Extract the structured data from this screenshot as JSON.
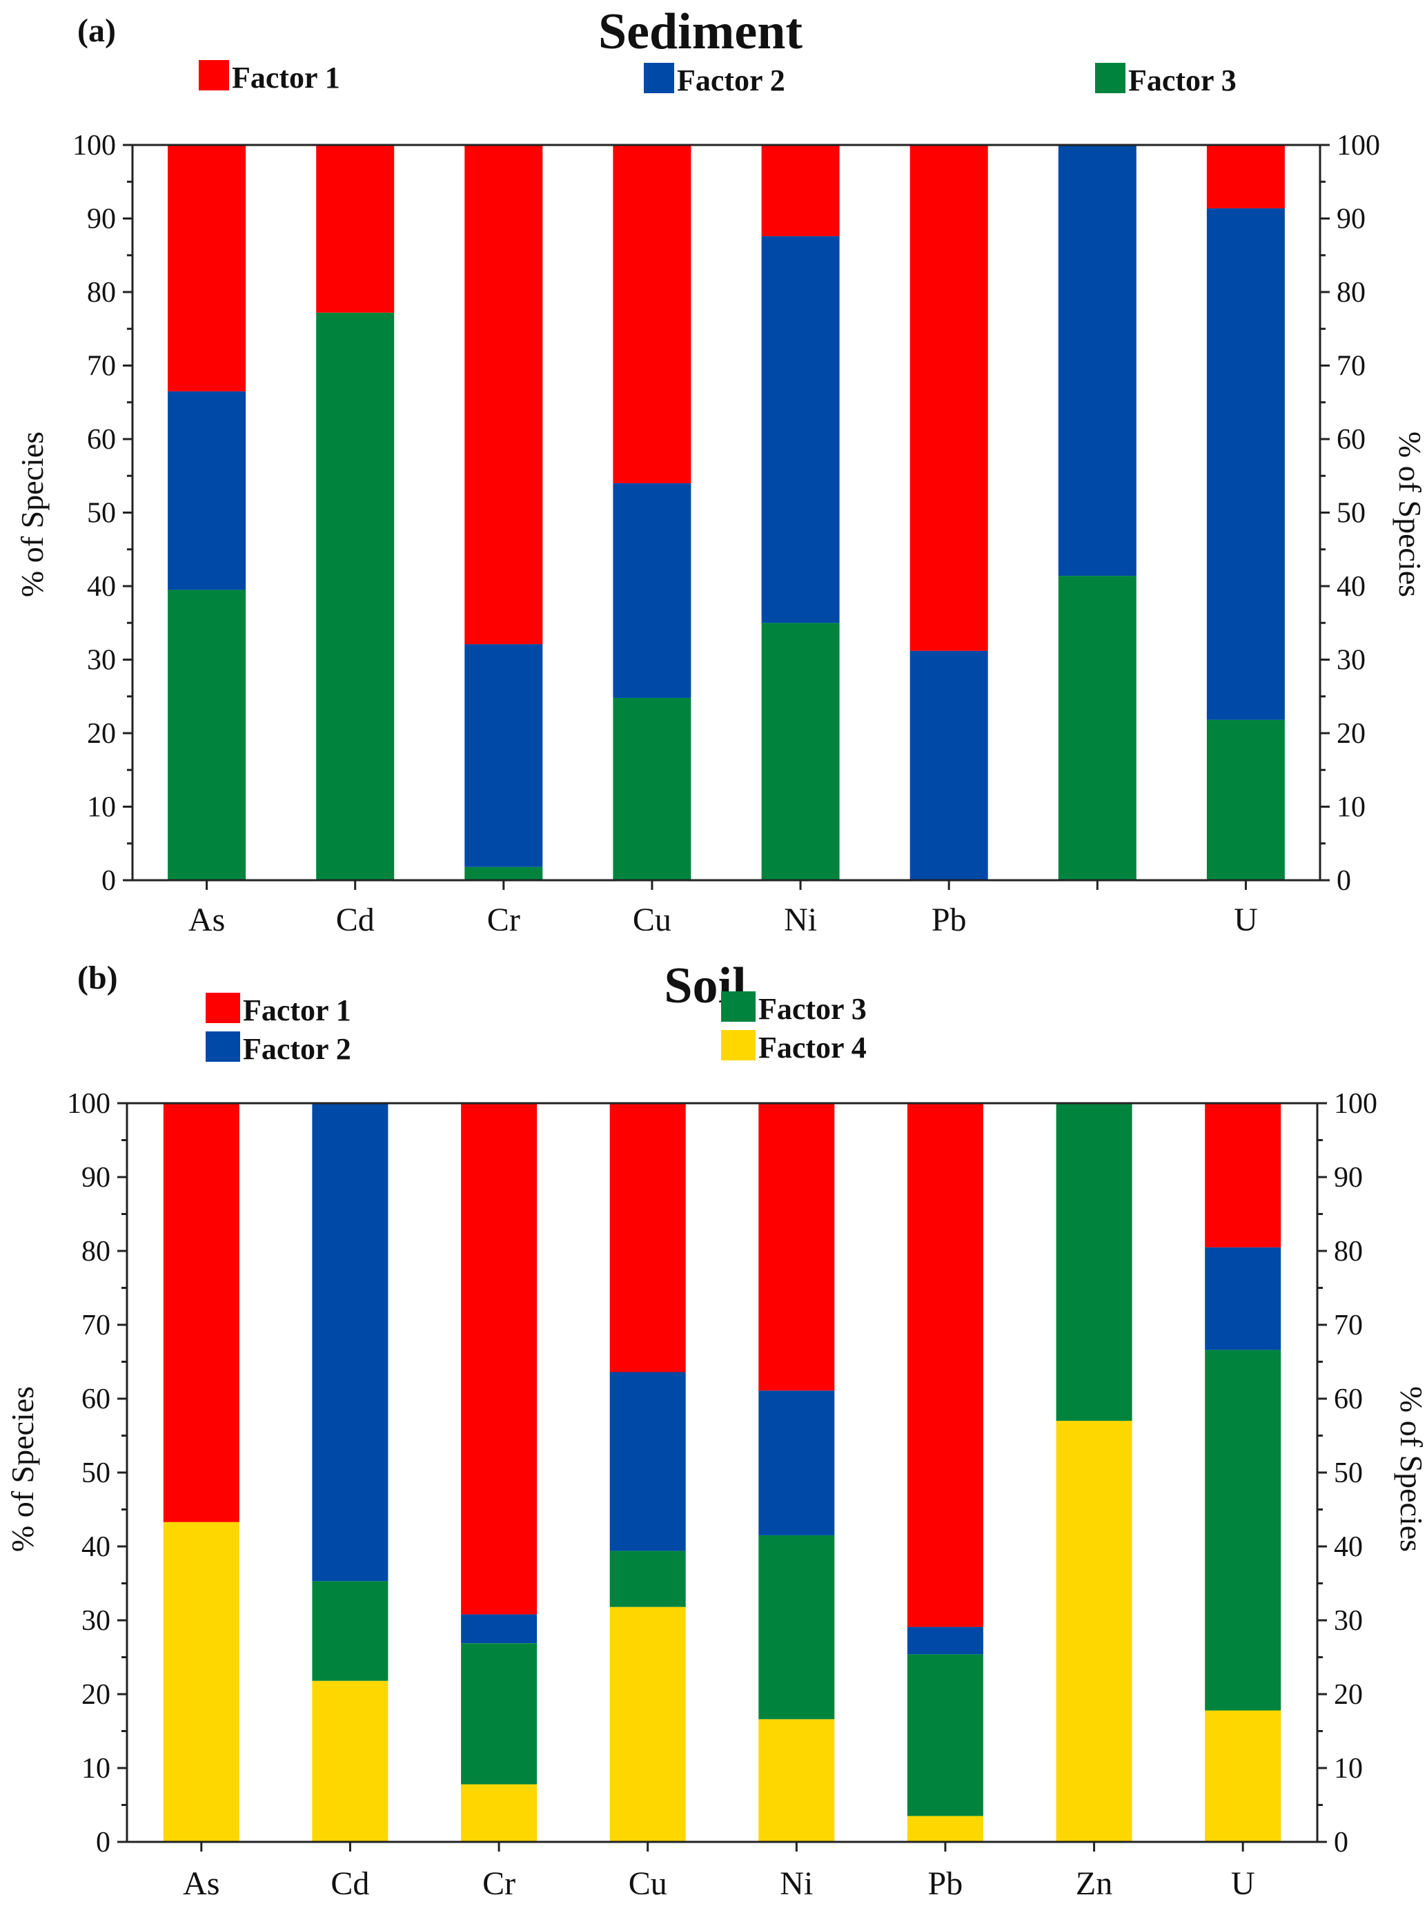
{
  "chart_data": [
    {
      "type": "bar",
      "stacked": true,
      "panel_label": "(a)",
      "title": "Sediment",
      "ylabel_left": "% of Species",
      "ylabel_right": "% of Species",
      "ylim": [
        0,
        100
      ],
      "yticks": [
        "0",
        "10",
        "20",
        "30",
        "40",
        "50",
        "60",
        "70",
        "80",
        "90",
        "100"
      ],
      "categories": [
        "As",
        "Cd",
        "Cr",
        "Cu",
        "Ni",
        "Pb",
        "",
        "U"
      ],
      "series": [
        {
          "name": "Factor 3",
          "color": "#00843d",
          "values": [
            39.5,
            77.2,
            1.8,
            24.8,
            35.0,
            0.0,
            41.4,
            21.8
          ]
        },
        {
          "name": "Factor 2",
          "color": "#0049a6",
          "values": [
            27.0,
            0.0,
            30.3,
            29.2,
            52.6,
            31.2,
            58.6,
            69.6
          ]
        },
        {
          "name": "Factor 1",
          "color": "#fe0000",
          "values": [
            33.5,
            22.8,
            67.9,
            46.0,
            12.4,
            68.8,
            0.0,
            8.6
          ]
        }
      ],
      "legend": [
        {
          "label": "Factor 1",
          "color": "#fe0000"
        },
        {
          "label": "Factor 2",
          "color": "#0049a6"
        },
        {
          "label": "Factor 3",
          "color": "#00843d"
        }
      ]
    },
    {
      "type": "bar",
      "stacked": true,
      "panel_label": "(b)",
      "title": "Soil",
      "ylabel_left": "% of Species",
      "ylabel_right": "% of Species",
      "ylim": [
        0,
        100
      ],
      "yticks": [
        "0",
        "10",
        "20",
        "30",
        "40",
        "50",
        "60",
        "70",
        "80",
        "90",
        "100"
      ],
      "categories": [
        "As",
        "Cd",
        "Cr",
        "Cu",
        "Ni",
        "Pb",
        "Zn",
        "U"
      ],
      "series": [
        {
          "name": "Factor 4",
          "color": "#fed700",
          "values": [
            43.3,
            21.8,
            7.8,
            31.8,
            16.6,
            3.5,
            57.0,
            17.8
          ]
        },
        {
          "name": "Factor 3",
          "color": "#00843d",
          "values": [
            0.0,
            13.5,
            19.1,
            7.6,
            24.9,
            21.9,
            43.0,
            48.8
          ]
        },
        {
          "name": "Factor 2",
          "color": "#0049a6",
          "values": [
            0.0,
            64.7,
            3.9,
            24.2,
            19.6,
            3.7,
            0.0,
            13.9
          ]
        },
        {
          "name": "Factor 1",
          "color": "#fe0000",
          "values": [
            56.7,
            0.0,
            69.2,
            36.4,
            38.9,
            70.9,
            0.0,
            19.5
          ]
        }
      ],
      "legend": [
        {
          "label": "Factor 1",
          "color": "#fe0000"
        },
        {
          "label": "Factor 2",
          "color": "#0049a6"
        },
        {
          "label": "Factor 3",
          "color": "#00843d"
        },
        {
          "label": "Factor 4",
          "color": "#fed700"
        }
      ]
    }
  ]
}
